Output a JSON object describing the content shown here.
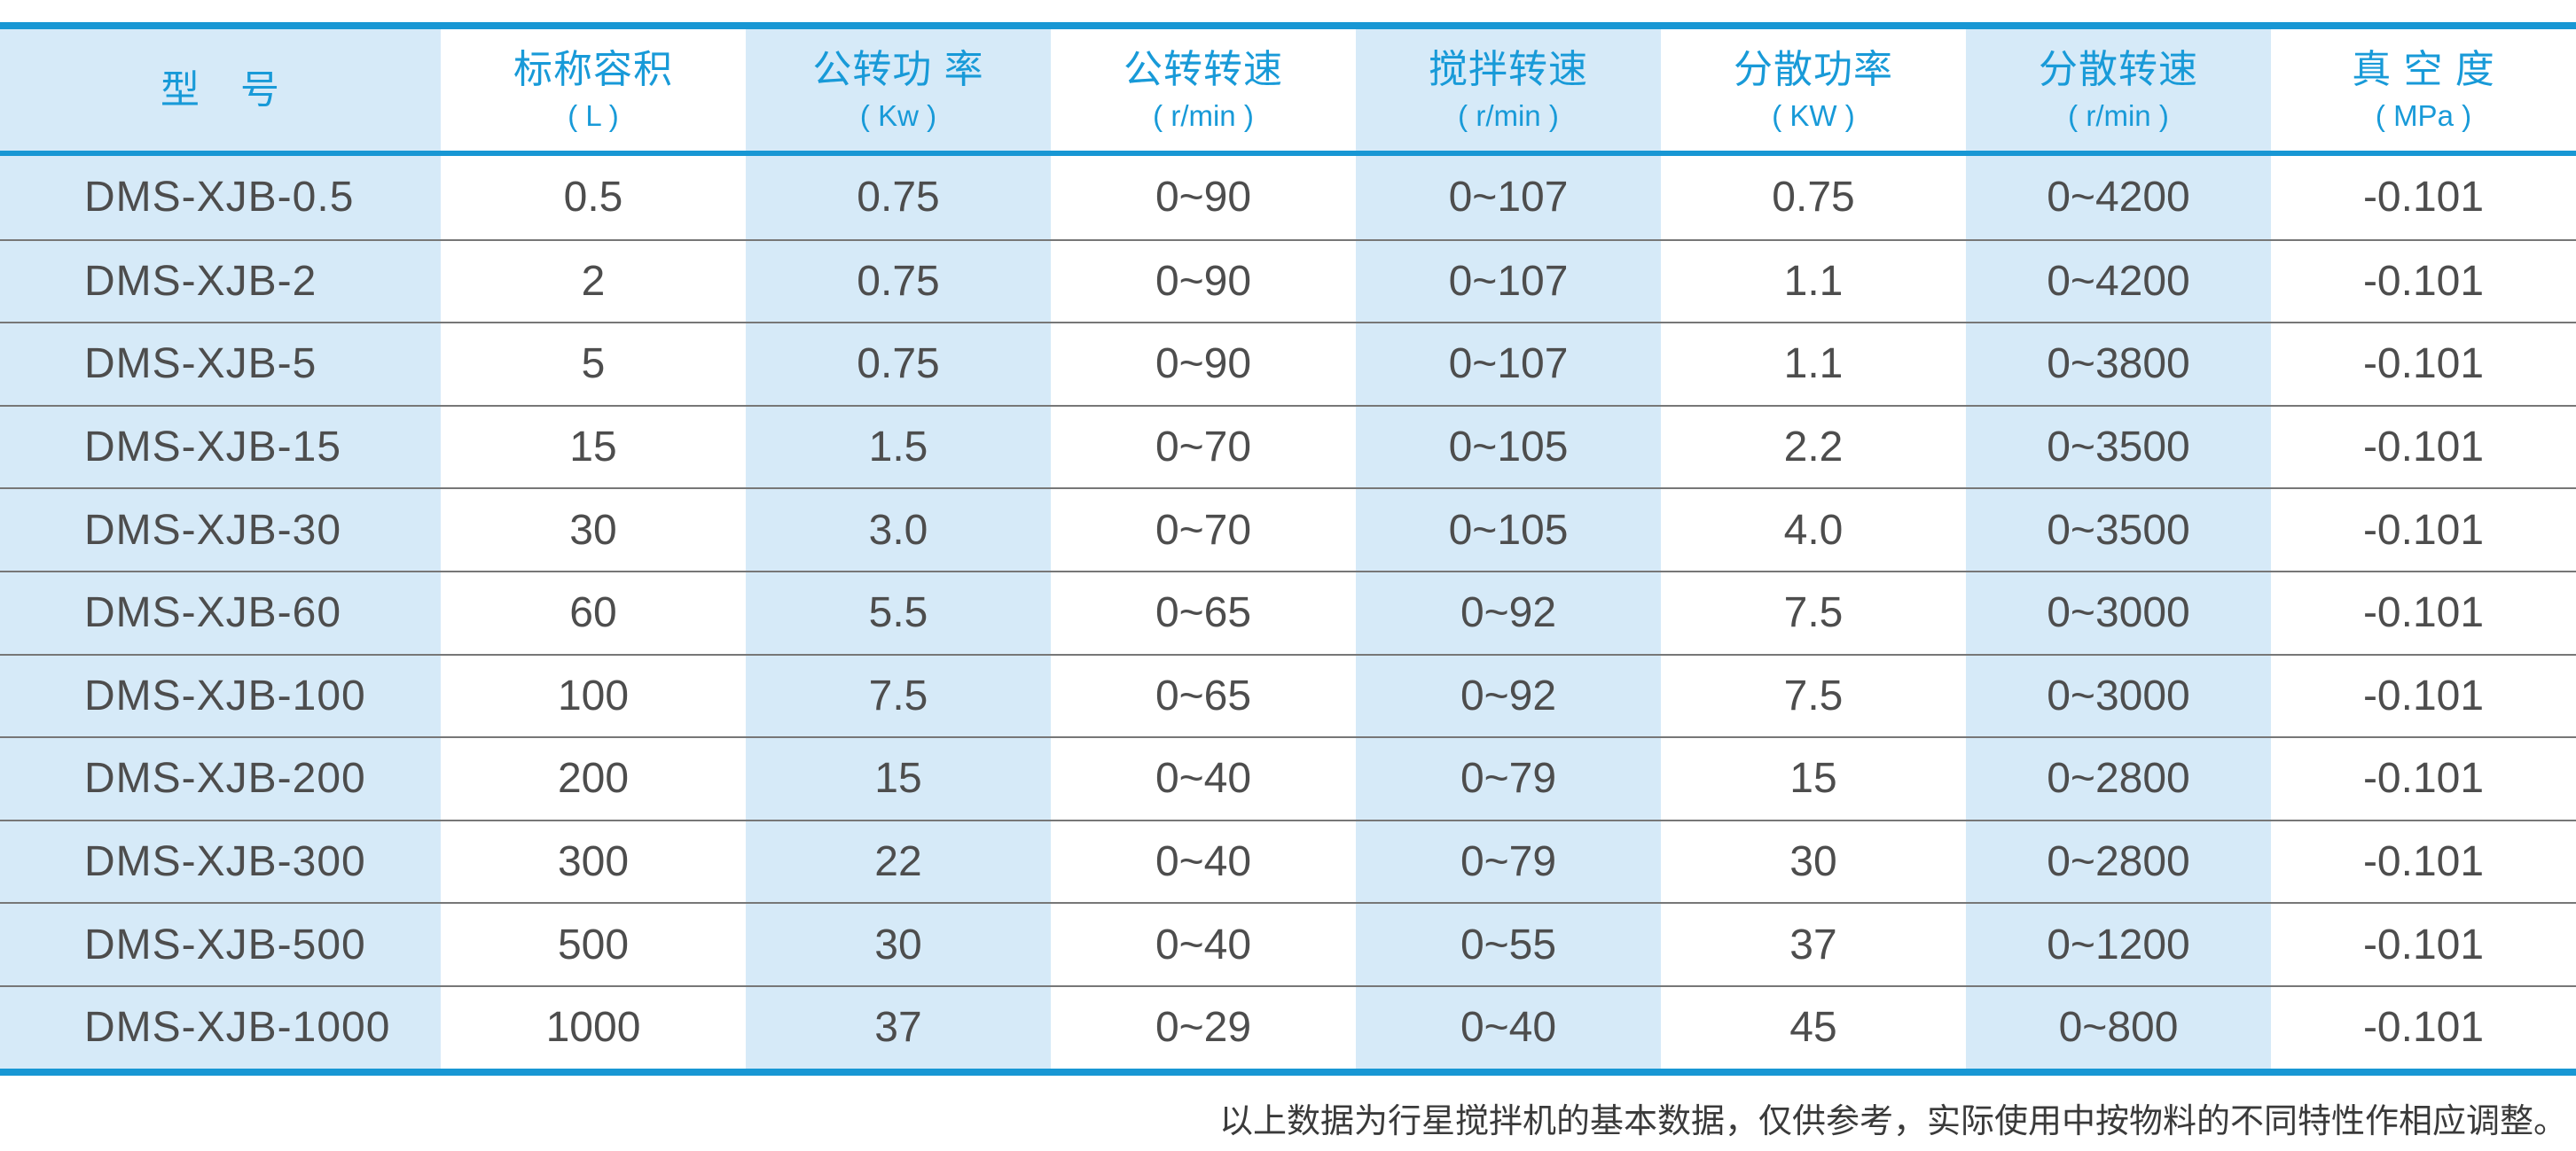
{
  "colors": {
    "accent_blue": "#1897d4",
    "header_text_blue": "#189ad8",
    "column_shade_blue": "#d6eaf8",
    "body_text": "#4d4d4d",
    "row_separator": "#777777"
  },
  "table": {
    "columns": [
      {
        "label": "型　号",
        "unit": ""
      },
      {
        "label": "标称容积",
        "unit": "( L )"
      },
      {
        "label": "公转功 率",
        "unit": "( Kw )"
      },
      {
        "label": "公转转速",
        "unit": "( r/min )"
      },
      {
        "label": "搅拌转速",
        "unit": "( r/min )"
      },
      {
        "label": "分散功率",
        "unit": "( KW )"
      },
      {
        "label": "分散转速",
        "unit": "( r/min )"
      },
      {
        "label": "真 空 度",
        "unit": "( MPa )"
      }
    ],
    "rows": [
      [
        "DMS-XJB-0.5",
        "0.5",
        "0.75",
        "0~90",
        "0~107",
        "0.75",
        "0~4200",
        "-0.101"
      ],
      [
        "DMS-XJB-2",
        "2",
        "0.75",
        "0~90",
        "0~107",
        "1.1",
        "0~4200",
        "-0.101"
      ],
      [
        "DMS-XJB-5",
        "5",
        "0.75",
        "0~90",
        "0~107",
        "1.1",
        "0~3800",
        "-0.101"
      ],
      [
        "DMS-XJB-15",
        "15",
        "1.5",
        "0~70",
        "0~105",
        "2.2",
        "0~3500",
        "-0.101"
      ],
      [
        "DMS-XJB-30",
        "30",
        "3.0",
        "0~70",
        "0~105",
        "4.0",
        "0~3500",
        "-0.101"
      ],
      [
        "DMS-XJB-60",
        "60",
        "5.5",
        "0~65",
        "0~92",
        "7.5",
        "0~3000",
        "-0.101"
      ],
      [
        "DMS-XJB-100",
        "100",
        "7.5",
        "0~65",
        "0~92",
        "7.5",
        "0~3000",
        "-0.101"
      ],
      [
        "DMS-XJB-200",
        "200",
        "15",
        "0~40",
        "0~79",
        "15",
        "0~2800",
        "-0.101"
      ],
      [
        "DMS-XJB-300",
        "300",
        "22",
        "0~40",
        "0~79",
        "30",
        "0~2800",
        "-0.101"
      ],
      [
        "DMS-XJB-500",
        "500",
        "30",
        "0~40",
        "0~55",
        "37",
        "0~1200",
        "-0.101"
      ],
      [
        "DMS-XJB-1000",
        "1000",
        "37",
        "0~29",
        "0~40",
        "45",
        "0~800",
        "-0.101"
      ]
    ]
  },
  "footnote": "以上数据为行星搅拌机的基本数据，仅供参考，实际使用中按物料的不同特性作相应调整。"
}
